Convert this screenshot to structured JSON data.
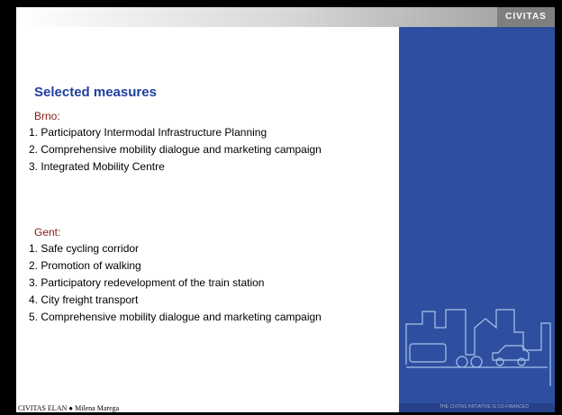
{
  "header": {
    "logo": "CIVITAS"
  },
  "title": "Selected measures",
  "sections": [
    {
      "heading": "Brno:",
      "items": [
        "1. Participatory Intermodal Infrastructure Planning",
        "2. Comprehensive mobility dialogue and marketing campaign",
        "3. Integrated Mobility Centre"
      ]
    },
    {
      "heading": "Gent:",
      "items": [
        "1. Safe cycling corridor",
        "2. Promotion of walking",
        "3. Participatory redevelopment of the train station",
        "4. City freight  transport",
        "5. Comprehensive mobility dialogue and marketing campaign"
      ]
    }
  ],
  "footer": "CIVITAS ELAN ● Milena Marega",
  "eu_note": "THE CIVITAS INITIATIVE IS CO-FINANCED"
}
